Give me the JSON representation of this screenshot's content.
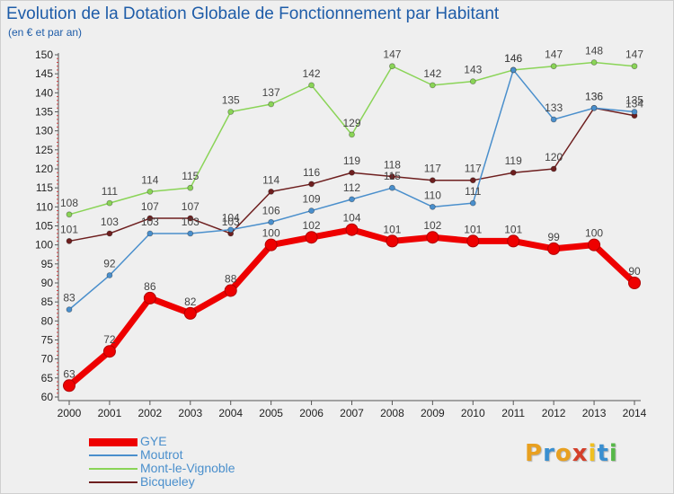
{
  "title": "Evolution de la Dotation Globale de Fonctionnement par Habitant",
  "subtitle": "(en € et par an)",
  "logo": {
    "letters": [
      "P",
      "r",
      "o",
      "x",
      "i",
      "t",
      "i"
    ],
    "colors": [
      "#e8a020",
      "#3a8fd0",
      "#e8a020",
      "#d43f2a",
      "#f0c020",
      "#3a8fd0",
      "#56b848"
    ]
  },
  "chart_data": {
    "type": "line",
    "title": "Evolution de la Dotation Globale de Fonctionnement par Habitant",
    "subtitle": "(en € et par an)",
    "xlabel": "",
    "ylabel": "",
    "x": [
      2000,
      2001,
      2002,
      2003,
      2004,
      2005,
      2006,
      2007,
      2008,
      2009,
      2010,
      2011,
      2012,
      2013,
      2014
    ],
    "ylim": [
      60,
      150
    ],
    "yticks": [
      60,
      65,
      70,
      75,
      80,
      85,
      90,
      95,
      100,
      105,
      110,
      115,
      120,
      125,
      130,
      135,
      140,
      145,
      150
    ],
    "grid": false,
    "legend_position": "bottom-left",
    "series": [
      {
        "name": "GYE",
        "color": "#ee0000",
        "values": [
          63,
          72,
          86,
          82,
          88,
          100,
          102,
          104,
          101,
          102,
          101,
          101,
          99,
          100,
          90
        ]
      },
      {
        "name": "Moutrot",
        "color": "#4a8fcc",
        "values": [
          83,
          92,
          103,
          103,
          104,
          106,
          109,
          112,
          115,
          110,
          111,
          146,
          133,
          136,
          135
        ]
      },
      {
        "name": "Mont-le-Vignoble",
        "color": "#8ad457",
        "values": [
          108,
          111,
          114,
          115,
          135,
          137,
          142,
          129,
          147,
          142,
          143,
          146,
          147,
          148,
          147
        ]
      },
      {
        "name": "Bicqueley",
        "color": "#6e1f1f",
        "values": [
          101,
          103,
          107,
          107,
          103,
          114,
          116,
          119,
          118,
          117,
          117,
          119,
          120,
          136,
          134
        ]
      }
    ]
  }
}
